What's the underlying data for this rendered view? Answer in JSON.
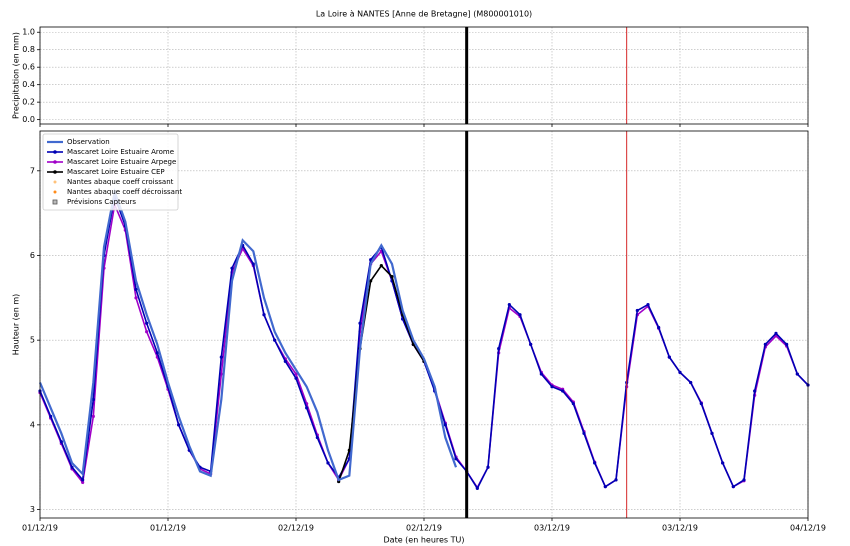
{
  "chart_data": [
    {
      "type": "line",
      "title": "La Loire à NANTES [Anne de Bretagne] (M800001010)",
      "ylabel": "Precipitation (en mm)",
      "xlim": [
        0,
        72
      ],
      "xticks": [
        0,
        12,
        24,
        36,
        48,
        60,
        72
      ],
      "show_xtick_labels": false,
      "ylim": [
        -0.05,
        1.06
      ],
      "yticks": [
        {
          "value": 0,
          "label": "0.0"
        },
        {
          "value": 0.2,
          "label": "0.2"
        },
        {
          "value": 0.4,
          "label": "0.4"
        },
        {
          "value": 0.6,
          "label": "0.6"
        },
        {
          "value": 0.8,
          "label": "0.8"
        },
        {
          "value": 1,
          "label": "1.0"
        }
      ],
      "grid": true,
      "vlines": [
        {
          "x": 40,
          "color": "#000000",
          "width": 3
        },
        {
          "x": 55,
          "color": "#d62728",
          "width": 1
        }
      ],
      "series": []
    },
    {
      "type": "line",
      "ylabel": "Hauteur (en m)",
      "xlabel": "Date (en heures TU)",
      "xlim": [
        0,
        72
      ],
      "xticks": [
        {
          "value": 0,
          "label": "01/12/19"
        },
        {
          "value": 12,
          "label": "01/12/19"
        },
        {
          "value": 24,
          "label": "02/12/19"
        },
        {
          "value": 36,
          "label": "02/12/19"
        },
        {
          "value": 48,
          "label": "03/12/19"
        },
        {
          "value": 60,
          "label": "03/12/19"
        },
        {
          "value": 72,
          "label": "04/12/19"
        }
      ],
      "show_xtick_labels": true,
      "ylim": [
        2.9,
        7.47
      ],
      "yticks": [
        3,
        4,
        5,
        6,
        7
      ],
      "grid": true,
      "legend": "upper left",
      "vlines": [
        {
          "x": 40,
          "color": "#000000",
          "width": 3
        },
        {
          "x": 55,
          "color": "#d62728",
          "width": 1
        }
      ],
      "series": [
        {
          "name": "Mascaret Loire Estuaire Arpege",
          "color": "#a000c8",
          "marker": "circle",
          "width": 1.6,
          "x": [
            0,
            1,
            2,
            3,
            4,
            5,
            6,
            7,
            8,
            9,
            10,
            11,
            12,
            13,
            14,
            15,
            16,
            17,
            18,
            19,
            20,
            21,
            22,
            23,
            24,
            25,
            26,
            27,
            28,
            29,
            30,
            31,
            32,
            33,
            34,
            35,
            36,
            37,
            38,
            39,
            40,
            41,
            42,
            43,
            44,
            45,
            46,
            47,
            48,
            49,
            50,
            51,
            52,
            53,
            54,
            55,
            56,
            57,
            58,
            59,
            60,
            61,
            62,
            63,
            64,
            65,
            66,
            67,
            68,
            69,
            70,
            71,
            72
          ],
          "values": [
            4.38,
            4.08,
            3.78,
            3.48,
            3.32,
            4.1,
            5.85,
            6.6,
            6.3,
            5.5,
            5.1,
            4.8,
            4.42,
            4.0,
            3.7,
            3.48,
            3.42,
            4.6,
            5.8,
            6.08,
            5.88,
            5.3,
            5.0,
            4.78,
            4.6,
            4.25,
            3.88,
            3.55,
            3.35,
            3.6,
            5.1,
            5.9,
            6.05,
            5.7,
            5.25,
            4.95,
            4.75,
            4.42,
            4.02,
            3.62,
            3.45,
            3.26,
            3.5,
            4.85,
            5.38,
            5.28,
            4.95,
            4.62,
            4.47,
            4.42,
            4.27,
            3.92,
            3.56,
            3.27,
            3.35,
            4.45,
            5.3,
            5.4,
            5.14,
            4.8,
            4.62,
            4.5,
            4.26,
            3.9,
            3.55,
            3.27,
            3.34,
            4.35,
            4.92,
            5.05,
            4.93,
            4.6,
            4.47
          ]
        },
        {
          "name": "Mascaret Loire Estuaire Arome",
          "color": "#0000b4",
          "marker": "circle",
          "width": 1.6,
          "x": [
            0,
            1,
            2,
            3,
            4,
            5,
            6,
            7,
            8,
            9,
            10,
            11,
            12,
            13,
            14,
            15,
            16,
            17,
            18,
            19,
            20,
            21,
            22,
            23,
            24,
            25,
            26,
            27,
            28,
            29,
            30,
            31,
            32,
            33,
            34,
            35,
            36,
            37,
            38,
            39,
            40,
            41,
            42,
            43,
            44,
            45,
            46,
            47,
            48,
            49,
            50,
            51,
            52,
            53,
            54,
            55,
            56,
            57,
            58,
            59,
            60,
            61,
            62,
            63,
            64,
            65,
            66,
            67,
            68,
            69,
            70,
            71,
            72
          ],
          "values": [
            4.4,
            4.1,
            3.8,
            3.5,
            3.35,
            4.3,
            6.0,
            6.7,
            6.35,
            5.6,
            5.2,
            4.85,
            4.45,
            4.0,
            3.7,
            3.5,
            3.45,
            4.8,
            5.85,
            6.12,
            5.9,
            5.3,
            5.0,
            4.75,
            4.55,
            4.2,
            3.85,
            3.55,
            3.38,
            3.6,
            5.2,
            5.95,
            6.1,
            5.7,
            5.25,
            4.95,
            4.75,
            4.4,
            4.0,
            3.6,
            3.45,
            3.25,
            3.5,
            4.9,
            5.42,
            5.3,
            4.95,
            4.6,
            4.45,
            4.4,
            4.25,
            3.9,
            3.55,
            3.27,
            3.35,
            4.5,
            5.35,
            5.42,
            5.15,
            4.8,
            4.62,
            4.5,
            4.25,
            3.9,
            3.55,
            3.27,
            3.35,
            4.4,
            4.95,
            5.08,
            4.95,
            4.6,
            4.47
          ]
        },
        {
          "name": "Mascaret Loire Estuaire CEP",
          "color": "#000000",
          "marker": "circle",
          "width": 1.6,
          "x": [
            28,
            29,
            30,
            31,
            32,
            33,
            34,
            35,
            36
          ],
          "values": [
            3.33,
            3.7,
            4.9,
            5.7,
            5.88,
            5.75,
            5.3,
            4.95,
            4.75
          ]
        },
        {
          "name": "Observation",
          "color": "#4169cf",
          "marker": "none",
          "width": 2.2,
          "x": [
            0,
            1,
            2,
            3,
            4,
            5,
            6,
            7,
            8,
            9,
            10,
            11,
            12,
            13,
            14,
            15,
            16,
            17,
            18,
            19,
            20,
            21,
            22,
            23,
            24,
            25,
            26,
            27,
            28,
            29,
            30,
            31,
            32,
            33,
            34,
            35,
            36,
            37,
            38,
            39
          ],
          "values": [
            4.5,
            4.2,
            3.9,
            3.55,
            3.42,
            4.5,
            6.1,
            6.75,
            6.4,
            5.7,
            5.3,
            4.95,
            4.5,
            4.1,
            3.75,
            3.45,
            3.4,
            4.3,
            5.7,
            6.18,
            6.05,
            5.5,
            5.1,
            4.85,
            4.65,
            4.45,
            4.15,
            3.7,
            3.35,
            3.4,
            4.9,
            5.9,
            6.12,
            5.9,
            5.35,
            5.0,
            4.78,
            4.45,
            3.85,
            3.5
          ]
        },
        {
          "name": "Nantes abaque coeff croissant",
          "color": "#ffc27a",
          "marker": "dot",
          "width": 0,
          "x": [],
          "values": []
        },
        {
          "name": "Nantes abaque coeff décroissant",
          "color": "#ff8c1a",
          "marker": "dot",
          "width": 0,
          "x": [],
          "values": []
        },
        {
          "name": "Prévisions Capteurs",
          "color": "#555555",
          "marker": "square",
          "width": 0,
          "x": [],
          "values": []
        }
      ],
      "legend_order": [
        3,
        1,
        0,
        2,
        4,
        5,
        6
      ]
    }
  ]
}
